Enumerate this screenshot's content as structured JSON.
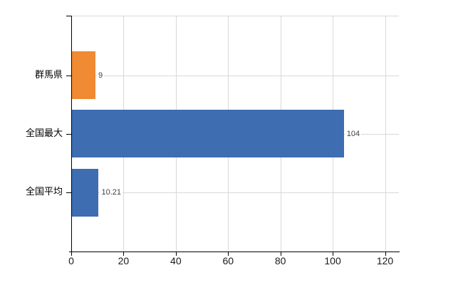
{
  "chart": {
    "background_color": "#ffffff",
    "axis_color": "#000000",
    "grid_color": "#d9d9d9",
    "value_label_color": "#404040",
    "tick_label_color": "#1a1a1a"
  },
  "chart_data": {
    "type": "bar",
    "orientation": "horizontal",
    "title": "",
    "xlabel": "",
    "ylabel": "",
    "categories": [
      "群馬県",
      "全国最大",
      "全国平均"
    ],
    "values": [
      9,
      104,
      10.21
    ],
    "value_labels": [
      "9",
      "104",
      "10.21"
    ],
    "bar_colors": [
      "#f08a33",
      "#3e6db1",
      "#3e6db1"
    ],
    "x_ticks": [
      0,
      20,
      40,
      60,
      80,
      100,
      120
    ],
    "xlim": [
      0,
      125
    ],
    "grid": true,
    "legend": false
  }
}
